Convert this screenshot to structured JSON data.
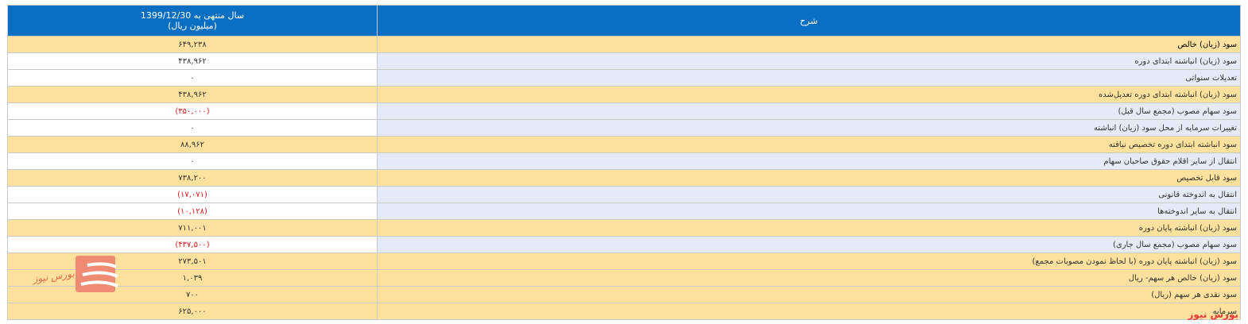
{
  "header": {
    "value_col_line1": "سال منتهی به 1399/12/30",
    "value_col_line2": "(میلیون ریال)",
    "desc_col": "شرح"
  },
  "rows": [
    {
      "label": "سود (زیان) خالص",
      "value": "۶۴۹,۲۳۸"
    },
    {
      "label": "سود (زیان) انباشته ابتدای دوره",
      "value": "۴۳۸,۹۶۲"
    },
    {
      "label": "تعدیلات سنواتی",
      "value": "۰"
    },
    {
      "label": "سود (زیان) انباشته ابتدای دوره تعدیل‌شده",
      "value": "۴۳۸,۹۶۲"
    },
    {
      "label": "سود سهام مصوب (مجمع سال قبل)",
      "value": "(۳۵۰,۰۰۰)"
    },
    {
      "label": "تغییرات سرمایه از محل سود (زیان) انباشته",
      "value": "۰"
    },
    {
      "label": "سود انباشته ابتدای دوره تخصیص نیافته",
      "value": "۸۸,۹۶۲"
    },
    {
      "label": "انتقال از سایر اقلام حقوق صاحبان سهام",
      "value": "۰"
    },
    {
      "label": "سود قابل تخصیص",
      "value": "۷۳۸,۲۰۰"
    },
    {
      "label": "انتقال به اندوخته قانونی",
      "value": "(۱۷,۰۷۱)"
    },
    {
      "label": "انتقال به سایر اندوخته‌ها",
      "value": "(۱۰,۱۲۸)"
    },
    {
      "label": "سود (زیان) انباشته پایان دوره",
      "value": "۷۱۱,۰۰۱"
    },
    {
      "label": "سود سهام مصوب (مجمع سال جاری)",
      "value": "(۴۳۷,۵۰۰)"
    },
    {
      "label": "سود (زیان) انباشته پایان دوره (با لحاظ نمودن مصوبات مجمع)",
      "value": "۲۷۳,۵۰۱"
    },
    {
      "label": "سود (زیان) خالص هر سهم- ریال",
      "value": "۱,۰۳۹"
    },
    {
      "label": "سود نقدی هر سهم (ریال)",
      "value": "۷۰۰"
    },
    {
      "label": "سرمایه",
      "value": "۶۲۵,۰۰۰"
    }
  ],
  "watermark": "بورس نیوز",
  "logo_text": "بورس نیوز",
  "colors": {
    "header_bg": "#0a6fc2",
    "highlight_row": "#fee19c",
    "desc_bg": "#e4ebf7",
    "negative": "#e21b1b"
  }
}
